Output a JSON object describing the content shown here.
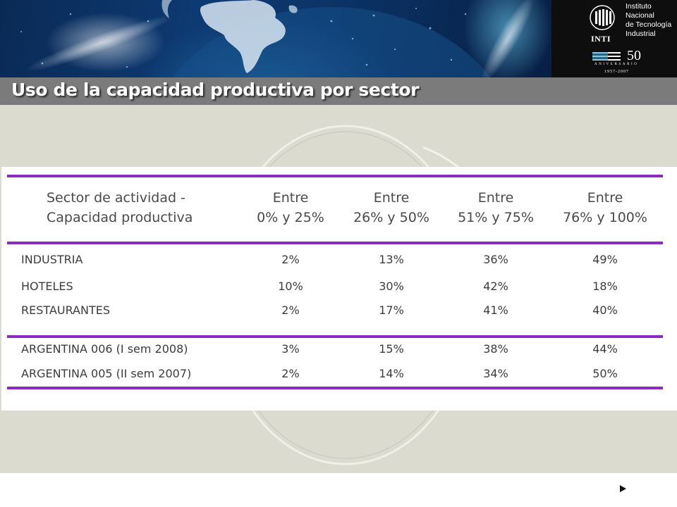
{
  "header": {
    "institute_lines": [
      "Instituto",
      "Nacional",
      "de Tecnología",
      "Industrial"
    ],
    "inti_word": "INTI",
    "anniversary_number": "50",
    "anniversary_word": "ANIVERSARIO",
    "anniversary_years": "1957-2007"
  },
  "slide": {
    "title": "Uso de la capacidad productiva por sector"
  },
  "table": {
    "row_header_lines": [
      "Sector de actividad -",
      "Capacidad productiva"
    ],
    "columns": [
      {
        "line1": "Entre",
        "line2": "0% y 25%"
      },
      {
        "line1": "Entre",
        "line2": "26% y 50%"
      },
      {
        "line1": "Entre",
        "line2": "51% y 75%"
      },
      {
        "line1": "Entre",
        "line2": "76% y 100%"
      }
    ],
    "sector_rows": [
      {
        "label": "INDUSTRIA",
        "values": [
          "2%",
          "13%",
          "36%",
          "49%"
        ]
      },
      {
        "label": "HOTELES",
        "values": [
          "10%",
          "30%",
          "42%",
          "18%"
        ]
      },
      {
        "label": "RESTAURANTES",
        "values": [
          "2%",
          "17%",
          "41%",
          "40%"
        ]
      }
    ],
    "total_rows": [
      {
        "label": "ARGENTINA 006 (I sem 2008)",
        "values": [
          "3%",
          "15%",
          "38%",
          "44%"
        ]
      },
      {
        "label": "ARGENTINA 005 (II sem 2007)",
        "values": [
          "2%",
          "14%",
          "34%",
          "50%"
        ]
      }
    ],
    "rule_color": "#8a2cc0"
  },
  "navigation": {
    "next_icon": "play-arrow-icon"
  }
}
